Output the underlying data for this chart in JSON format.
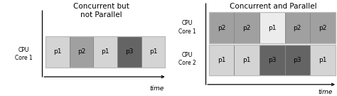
{
  "left_title": "Concurrent but\nnot Parallel",
  "right_title": "Concurrent and Parallel",
  "left_ylabel": "CPU\nCore 1",
  "right_ylabel_top": "CPU\nCore 1",
  "right_ylabel_bot": "CPU\nCore 2",
  "left_bars": [
    {
      "label": "p1",
      "color": "#d4d4d4"
    },
    {
      "label": "p2",
      "color": "#a0a0a0"
    },
    {
      "label": "p1",
      "color": "#d4d4d4"
    },
    {
      "label": "p3",
      "color": "#646464"
    },
    {
      "label": "p1",
      "color": "#d4d4d4"
    }
  ],
  "right_top_bars": [
    {
      "label": "p2",
      "color": "#a0a0a0"
    },
    {
      "label": "p2",
      "color": "#a0a0a0"
    },
    {
      "label": "p1",
      "color": "#ececec"
    },
    {
      "label": "p2",
      "color": "#a0a0a0"
    },
    {
      "label": "p2",
      "color": "#a0a0a0"
    }
  ],
  "right_bot_bars": [
    {
      "label": "p1",
      "color": "#d4d4d4"
    },
    {
      "label": "p1",
      "color": "#d4d4d4"
    },
    {
      "label": "p3",
      "color": "#646464"
    },
    {
      "label": "p3",
      "color": "#646464"
    },
    {
      "label": "p1",
      "color": "#d4d4d4"
    }
  ],
  "time_label": "time",
  "bg_color": "#ffffff",
  "bar_edge_color": "#888888",
  "outer_rect_color": "#bbbbbb",
  "font_size_title": 7.5,
  "font_size_label": 5.5,
  "font_size_bar": 6.5,
  "font_size_time": 6.5
}
